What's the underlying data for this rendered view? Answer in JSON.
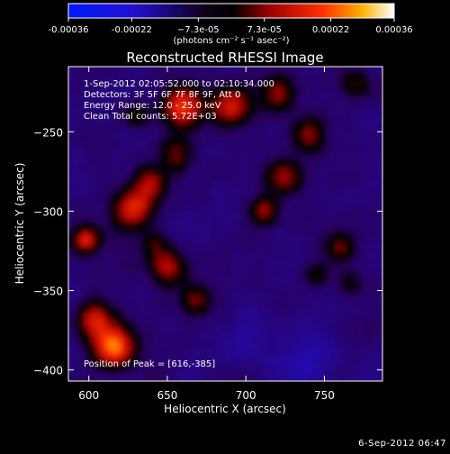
{
  "chart_data": {
    "type": "heatmap",
    "title": "Reconstructed RHESSI Image",
    "xlabel": "Heliocentric X (arcsec)",
    "ylabel": "Heliocentric Y (arcsec)",
    "xlim": [
      587,
      787
    ],
    "ylim": [
      -407,
      -209
    ],
    "x_ticks": [
      600,
      650,
      700,
      750
    ],
    "y_ticks": [
      -250,
      -300,
      -350,
      -400
    ],
    "colorbar": {
      "range": [
        -0.00036,
        0.00036
      ],
      "tick_values": [
        -0.00036,
        -0.00022,
        -7.3e-05,
        7.3e-05,
        0.00022,
        0.00036
      ],
      "tick_labels": [
        "-0.00036",
        "-0.00022",
        "−7.3e-05",
        "7.3e-05",
        "0.00022",
        "0.00036"
      ],
      "unit_label": "(photons cm⁻² s⁻¹ asec⁻²)"
    },
    "annotations": [
      "1-Sep-2012 02:05:52.000 to 02:10:34.000",
      "Detectors: 3F 5F 6F 7F 8F 9F, Att 0",
      "Energy Range: 12.0 - 25.0 keV",
      "Clean     Total counts: 5.72E+03"
    ],
    "peak_label": "Position of Peak = [616,-385]",
    "grid": false,
    "peak": {
      "x": 616,
      "y": -385
    },
    "blobs": [
      {
        "x": 616,
        "y": -385,
        "amp": 0.00034,
        "sigma": 9
      },
      {
        "x": 604,
        "y": -368,
        "amp": 0.00022,
        "sigma": 8
      },
      {
        "x": 598,
        "y": -318,
        "amp": 0.00024,
        "sigma": 6
      },
      {
        "x": 628,
        "y": -298,
        "amp": 0.00025,
        "sigma": 9
      },
      {
        "x": 640,
        "y": -282,
        "amp": 0.00018,
        "sigma": 7
      },
      {
        "x": 655,
        "y": -265,
        "amp": 0.00014,
        "sigma": 8
      },
      {
        "x": 660,
        "y": -234,
        "amp": 0.00026,
        "sigma": 9
      },
      {
        "x": 690,
        "y": -234,
        "amp": 0.00022,
        "sigma": 9
      },
      {
        "x": 720,
        "y": -226,
        "amp": 0.00017,
        "sigma": 8
      },
      {
        "x": 740,
        "y": -252,
        "amp": 0.00016,
        "sigma": 8
      },
      {
        "x": 724,
        "y": -278,
        "amp": 0.00018,
        "sigma": 8
      },
      {
        "x": 712,
        "y": -300,
        "amp": 0.00016,
        "sigma": 7
      },
      {
        "x": 650,
        "y": -335,
        "amp": 0.00018,
        "sigma": 8
      },
      {
        "x": 668,
        "y": -356,
        "amp": 0.00015,
        "sigma": 7
      },
      {
        "x": 642,
        "y": -320,
        "amp": 0.0001,
        "sigma": 6
      },
      {
        "x": 760,
        "y": -322,
        "amp": 0.00012,
        "sigma": 7
      },
      {
        "x": 766,
        "y": -346,
        "amp": 0.0001,
        "sigma": 6
      },
      {
        "x": 745,
        "y": -340,
        "amp": 9e-05,
        "sigma": 6
      },
      {
        "x": 770,
        "y": -220,
        "amp": 0.00012,
        "sigma": 7
      },
      {
        "x": 700,
        "y": -380,
        "amp": -6e-05,
        "sigma": 10
      },
      {
        "x": 740,
        "y": -395,
        "amp": -7e-05,
        "sigma": 12
      },
      {
        "x": 630,
        "y": -240,
        "amp": 0.00012,
        "sigma": 6
      }
    ]
  },
  "footer": {
    "date": "6-Sep-2012 06:47"
  }
}
